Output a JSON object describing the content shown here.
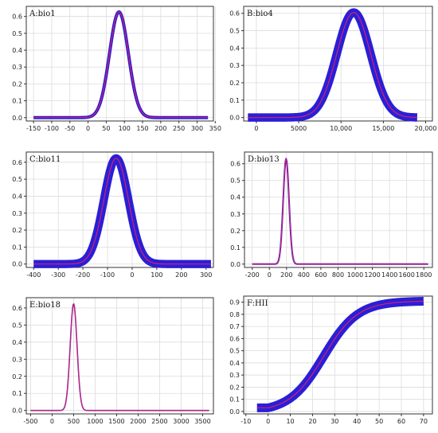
{
  "colors": {
    "band": "#2a1fd6",
    "curve": "#e0206a",
    "grid": "#dcdcdc"
  },
  "chart_data": [
    {
      "id": "A",
      "type": "line",
      "title": "A:bio1",
      "xlim": [
        -170,
        345
      ],
      "ylim": [
        -0.02,
        0.66
      ],
      "xticks": [
        -150,
        -100,
        -50,
        0,
        50,
        100,
        150,
        200,
        250,
        300,
        350
      ],
      "xtick_labels": [
        "-150",
        "-100",
        "-50",
        "0",
        "50",
        "100",
        "150",
        "200",
        "250",
        "300",
        "350"
      ],
      "yticks": [
        0.0,
        0.1,
        0.2,
        0.3,
        0.4,
        0.5,
        0.6
      ],
      "ytick_labels": [
        "0.0",
        "0.1",
        "0.2",
        "0.3",
        "0.4",
        "0.5",
        "0.6"
      ],
      "curve": {
        "shape": "gaussian",
        "peak": 0.627,
        "mean": 85,
        "sd": 26,
        "x_range": [
          -150,
          330
        ],
        "band_width": 0.008
      },
      "grid": true
    },
    {
      "id": "B",
      "type": "line",
      "title": "B:bio4",
      "xlim": [
        -1500,
        20800
      ],
      "ylim": [
        -0.02,
        0.64
      ],
      "xticks": [
        0,
        5000,
        10000,
        15000,
        20000
      ],
      "xtick_labels": [
        "0",
        "5000",
        "10,000",
        "15,000",
        "20,000"
      ],
      "yticks": [
        0.0,
        0.1,
        0.2,
        0.3,
        0.4,
        0.5,
        0.6
      ],
      "ytick_labels": [
        "0.0",
        "0.1",
        "0.2",
        "0.3",
        "0.4",
        "0.5",
        "0.6"
      ],
      "curve": {
        "shape": "gaussian",
        "peak": 0.605,
        "mean": 11500,
        "sd": 2000,
        "x_range": [
          -1000,
          19000
        ],
        "band_width": 0.02
      },
      "grid": true
    },
    {
      "id": "C",
      "type": "line",
      "title": "C:bio11",
      "xlim": [
        -430,
        330
      ],
      "ylim": [
        -0.02,
        0.66
      ],
      "xticks": [
        -400,
        -300,
        -200,
        -100,
        0,
        100,
        200,
        300
      ],
      "xtick_labels": [
        "-400",
        "-300",
        "-200",
        "-100",
        "0",
        "100",
        "200",
        "300"
      ],
      "yticks": [
        0.0,
        0.1,
        0.2,
        0.3,
        0.4,
        0.5,
        0.6
      ],
      "ytick_labels": [
        "0.0",
        "0.1",
        "0.2",
        "0.3",
        "0.4",
        "0.5",
        "0.6"
      ],
      "curve": {
        "shape": "gaussian",
        "peak": 0.623,
        "mean": -65,
        "sd": 50,
        "x_range": [
          -400,
          320
        ],
        "band_width": 0.02
      },
      "grid": true
    },
    {
      "id": "D",
      "type": "line",
      "title": "D:bio13",
      "xlim": [
        -290,
        1900
      ],
      "ylim": [
        -0.02,
        0.67
      ],
      "xticks": [
        -200,
        0,
        200,
        400,
        600,
        800,
        1000,
        1200,
        1400,
        1600,
        1800
      ],
      "xtick_labels": [
        "-200",
        "0",
        "200",
        "400",
        "600",
        "800",
        "1000",
        "1200",
        "1400",
        "1600",
        "1800"
      ],
      "yticks": [
        0.0,
        0.1,
        0.2,
        0.3,
        0.4,
        0.5,
        0.6
      ],
      "ytick_labels": [
        "0.0",
        "0.1",
        "0.2",
        "0.3",
        "0.4",
        "0.5",
        "0.6"
      ],
      "curve": {
        "shape": "gaussian",
        "peak": 0.63,
        "mean": 195,
        "sd": 34,
        "x_range": [
          -200,
          1850
        ],
        "band_width": 0.004
      },
      "grid": true
    },
    {
      "id": "E",
      "type": "line",
      "title": "E:bio18",
      "xlim": [
        -600,
        3750
      ],
      "ylim": [
        -0.02,
        0.66
      ],
      "xticks": [
        -500,
        0,
        500,
        1000,
        1500,
        2000,
        2500,
        3000,
        3500
      ],
      "xtick_labels": [
        "-500",
        "0",
        "500",
        "1000",
        "1500",
        "2000",
        "2500",
        "3000",
        "3500"
      ],
      "yticks": [
        0.0,
        0.1,
        0.2,
        0.3,
        0.4,
        0.5,
        0.6
      ],
      "ytick_labels": [
        "0.0",
        "0.1",
        "0.2",
        "0.3",
        "0.4",
        "0.5",
        "0.6"
      ],
      "curve": {
        "shape": "gaussian",
        "peak": 0.625,
        "mean": 500,
        "sd": 80,
        "x_range": [
          -500,
          3650
        ],
        "band_width": 0.003
      },
      "grid": true
    },
    {
      "id": "F",
      "type": "line",
      "title": "F:HII",
      "xlim": [
        -11,
        74
      ],
      "ylim": [
        -0.02,
        0.95
      ],
      "xticks": [
        -10,
        0,
        10,
        20,
        30,
        40,
        50,
        60,
        70
      ],
      "xtick_labels": [
        "-10",
        "0",
        "10",
        "20",
        "30",
        "40",
        "50",
        "60",
        "70"
      ],
      "yticks": [
        0.0,
        0.1,
        0.2,
        0.3,
        0.4,
        0.5,
        0.6,
        0.7,
        0.8,
        0.9
      ],
      "ytick_labels": [
        "0.0",
        "0.1",
        "0.2",
        "0.3",
        "0.4",
        "0.5",
        "0.6",
        "0.7",
        "0.8",
        "0.9"
      ],
      "curve": {
        "shape": "logistic",
        "floor": 0.03,
        "top": 0.91,
        "mid": 25,
        "k": 0.13,
        "flat_until": 0,
        "x_range": [
          -5,
          70
        ],
        "band_width": 0.03
      },
      "grid": true
    }
  ]
}
